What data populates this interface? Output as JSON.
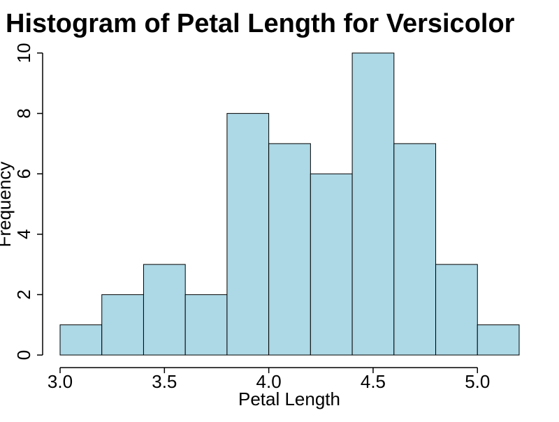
{
  "chart_data": {
    "type": "bar",
    "title": "Histogram of Petal Length for Versicolor",
    "xlabel": "Petal Length",
    "ylabel": "Frequency",
    "bins": [
      {
        "start": 3.0,
        "end": 3.2,
        "count": 1
      },
      {
        "start": 3.2,
        "end": 3.4,
        "count": 2
      },
      {
        "start": 3.4,
        "end": 3.6,
        "count": 3
      },
      {
        "start": 3.6,
        "end": 3.8,
        "count": 2
      },
      {
        "start": 3.8,
        "end": 4.0,
        "count": 8
      },
      {
        "start": 4.0,
        "end": 4.2,
        "count": 7
      },
      {
        "start": 4.2,
        "end": 4.4,
        "count": 6
      },
      {
        "start": 4.4,
        "end": 4.6,
        "count": 10
      },
      {
        "start": 4.6,
        "end": 4.8,
        "count": 7
      },
      {
        "start": 4.8,
        "end": 5.0,
        "count": 3
      },
      {
        "start": 5.0,
        "end": 5.2,
        "count": 1
      }
    ],
    "xlim": [
      3.0,
      5.2
    ],
    "ylim": [
      0,
      10
    ],
    "x_ticks": [
      "3.0",
      "3.5",
      "4.0",
      "4.5",
      "5.0"
    ],
    "y_ticks": [
      "0",
      "2",
      "4",
      "6",
      "8",
      "10"
    ],
    "grid": false,
    "bar_color": "#ADD8E6",
    "bar_edge_color": "#000000"
  }
}
